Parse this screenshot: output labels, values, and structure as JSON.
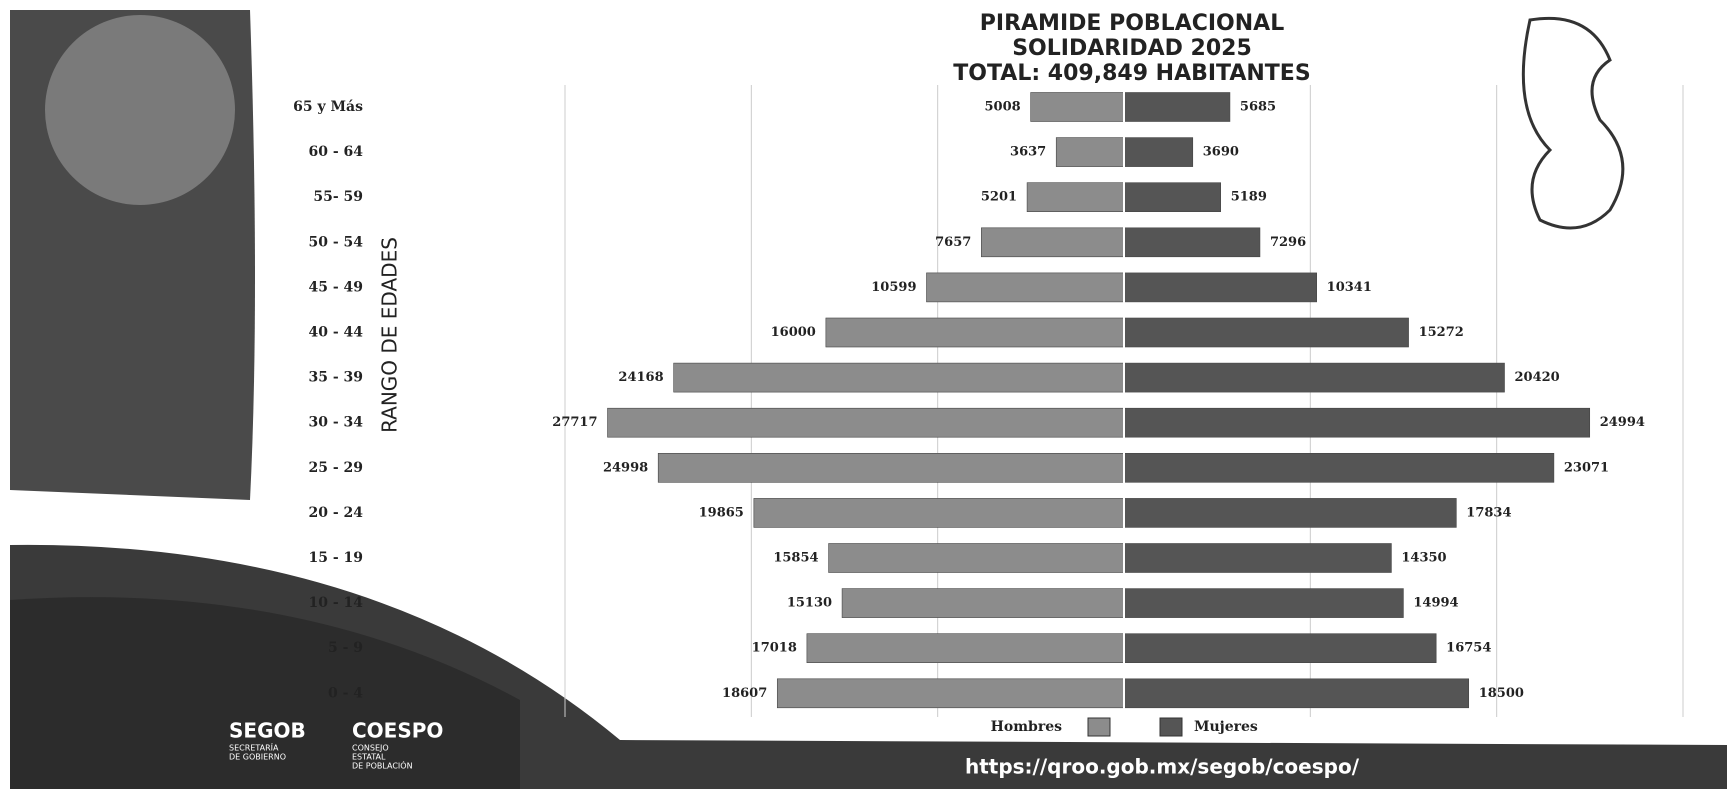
{
  "chart_data": {
    "type": "pyramid",
    "title": [
      "PIRAMIDE POBLACIONAL",
      "SOLIDARIDAD 2025",
      "TOTAL: 409,849 HABITANTES"
    ],
    "ylabel": "RANGO DE EDADES",
    "categories": [
      "65 y Más",
      "60 - 64",
      "55- 59",
      "50 - 54",
      "45 - 49",
      "40 - 44",
      "35 - 39",
      "30 - 34",
      "25 - 29",
      "20 - 24",
      "15 - 19",
      "10 - 14",
      "5 - 9",
      "0 - 4"
    ],
    "series": [
      {
        "name": "Hombres",
        "color": "#8c8c8c",
        "values": [
          5008,
          3637,
          5201,
          7657,
          10599,
          16000,
          24168,
          27717,
          24998,
          19865,
          15854,
          15130,
          17018,
          18607
        ]
      },
      {
        "name": "Mujeres",
        "color": "#555555",
        "values": [
          5685,
          3690,
          5189,
          7296,
          10341,
          15272,
          20420,
          24994,
          23071,
          17834,
          14350,
          14994,
          16754,
          18500
        ]
      }
    ],
    "xlim": [
      -30000,
      30000
    ],
    "xticks": [
      -30000,
      -20000,
      -10000,
      0,
      10000,
      20000,
      30000
    ],
    "xtick_labels": false,
    "grid": true,
    "footer": {
      "segob": "SEGOB",
      "segob_sub": [
        "SECRETARÍA",
        "DE GOBIERNO"
      ],
      "coespo": "COESPO",
      "coespo_sub": [
        "CONSEJO",
        "ESTATAL",
        "DE POBLACIÓN"
      ],
      "url": "https://qroo.gob.mx/segob/coespo/"
    }
  }
}
